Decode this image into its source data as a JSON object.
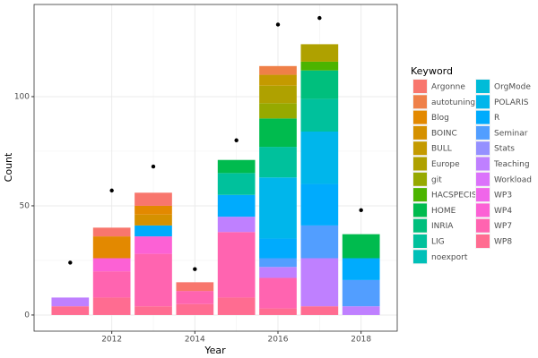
{
  "chart_data": {
    "type": "stacked-bar",
    "x_label": "Year",
    "y_label": "Count",
    "legend_title": "Keyword",
    "x": [
      2011,
      2012,
      2013,
      2014,
      2015,
      2016,
      2017,
      2018
    ],
    "xlim": [
      2010.13,
      2018.87
    ],
    "xticks": [
      2012,
      2014,
      2016,
      2018
    ],
    "ylim": [
      -7.4,
      142.2
    ],
    "yticks": [
      0,
      50,
      100
    ],
    "grid": true,
    "bar_width": 0.9,
    "series": [
      {
        "name": "Argonne",
        "color": "#F8766D",
        "values": [
          0,
          4,
          6,
          4,
          0,
          0,
          0,
          0
        ]
      },
      {
        "name": "autotuning",
        "color": "#EF8048",
        "values": [
          0,
          0,
          0,
          0,
          0,
          4,
          0,
          0
        ]
      },
      {
        "name": "Blog",
        "color": "#E38900",
        "values": [
          0,
          10,
          4,
          0,
          0,
          0,
          0,
          0
        ]
      },
      {
        "name": "BOINC",
        "color": "#D59100",
        "values": [
          0,
          0,
          5,
          0,
          0,
          0,
          0,
          0
        ]
      },
      {
        "name": "BULL",
        "color": "#C49A00",
        "values": [
          0,
          0,
          0,
          0,
          0,
          5,
          0,
          0
        ]
      },
      {
        "name": "Europe",
        "color": "#AFA100",
        "values": [
          0,
          0,
          0,
          0,
          0,
          8,
          8,
          0
        ]
      },
      {
        "name": "git",
        "color": "#96A900",
        "values": [
          0,
          0,
          0,
          0,
          0,
          7,
          0,
          0
        ]
      },
      {
        "name": "HACSPECIS",
        "color": "#4CB400",
        "values": [
          0,
          0,
          0,
          0,
          0,
          0,
          4,
          0
        ]
      },
      {
        "name": "HOME",
        "color": "#00BB4E",
        "values": [
          0,
          0,
          0,
          0,
          6,
          13,
          0,
          11
        ]
      },
      {
        "name": "INRIA",
        "color": "#00BF7D",
        "values": [
          0,
          0,
          0,
          0,
          0,
          0,
          13,
          0
        ]
      },
      {
        "name": "LIG",
        "color": "#00C19C",
        "values": [
          0,
          0,
          0,
          0,
          10,
          14,
          15,
          0
        ]
      },
      {
        "name": "noexport",
        "color": "#00C0B8",
        "values": [
          0,
          0,
          0,
          0,
          0,
          0,
          0,
          0
        ]
      },
      {
        "name": "OrgMode",
        "color": "#00BCD8",
        "values": [
          0,
          0,
          0,
          0,
          0,
          0,
          0,
          0
        ]
      },
      {
        "name": "POLARIS",
        "color": "#00B6EB",
        "values": [
          0,
          0,
          0,
          0,
          0,
          28,
          24,
          0
        ]
      },
      {
        "name": "R",
        "color": "#00ABFD",
        "values": [
          0,
          0,
          5,
          0,
          10,
          9,
          19,
          10
        ]
      },
      {
        "name": "Seminar",
        "color": "#529EFF",
        "values": [
          0,
          0,
          0,
          0,
          0,
          4,
          15,
          12
        ]
      },
      {
        "name": "Stats",
        "color": "#9590FF",
        "values": [
          0,
          0,
          0,
          0,
          0,
          0,
          0,
          0
        ]
      },
      {
        "name": "Teaching",
        "color": "#BF80FF",
        "values": [
          4,
          0,
          0,
          0,
          7,
          5,
          22,
          4
        ]
      },
      {
        "name": "Workload",
        "color": "#DB72FB",
        "values": [
          0,
          0,
          0,
          0,
          0,
          0,
          0,
          0
        ]
      },
      {
        "name": "WP3",
        "color": "#F066EA",
        "values": [
          0,
          0,
          0,
          0,
          0,
          0,
          0,
          0
        ]
      },
      {
        "name": "WP4",
        "color": "#FC61D5",
        "values": [
          0,
          6,
          8,
          0,
          0,
          0,
          0,
          0
        ]
      },
      {
        "name": "WP7",
        "color": "#FF64B0",
        "values": [
          0,
          12,
          24,
          6,
          30,
          14,
          0,
          0
        ]
      },
      {
        "name": "WP8",
        "color": "#FF6C91",
        "values": [
          4,
          8,
          4,
          5,
          8,
          3,
          4,
          0
        ]
      }
    ],
    "totals": {
      "color": "#000000",
      "values": [
        24,
        57,
        68,
        21,
        80,
        133,
        136,
        48
      ]
    }
  }
}
